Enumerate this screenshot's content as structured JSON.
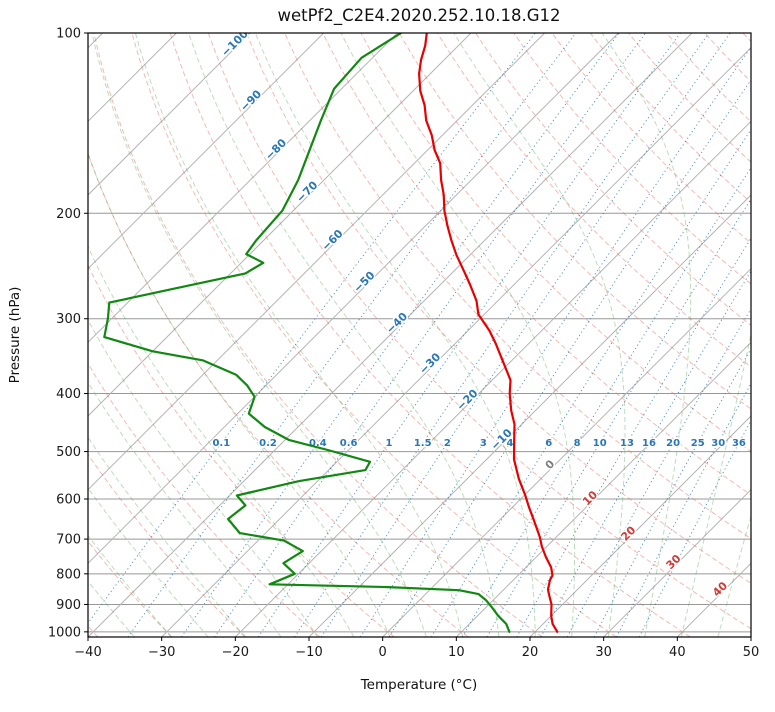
{
  "chart_data": {
    "type": "line",
    "subtype": "skewt-log-p",
    "title": "wetPf2_C2E4.2020.252.10.18.G12",
    "xlabel": "Temperature (°C)",
    "ylabel": "Pressure (hPa)",
    "x_range": [
      -40,
      50
    ],
    "p_top": 100,
    "p_bottom": 1020,
    "grid": true,
    "x_ticks": [
      {
        "v": -40,
        "label": "−40"
      },
      {
        "v": -30,
        "label": "−30"
      },
      {
        "v": -20,
        "label": "−20"
      },
      {
        "v": -10,
        "label": "−10"
      },
      {
        "v": 0,
        "label": "0"
      },
      {
        "v": 10,
        "label": "10"
      },
      {
        "v": 20,
        "label": "20"
      },
      {
        "v": 30,
        "label": "30"
      },
      {
        "v": 40,
        "label": "40"
      },
      {
        "v": 50,
        "label": "50"
      }
    ],
    "y_ticks": [
      {
        "v": 100,
        "label": "100"
      },
      {
        "v": 200,
        "label": "200"
      },
      {
        "v": 300,
        "label": "300"
      },
      {
        "v": 400,
        "label": "400"
      },
      {
        "v": 500,
        "label": "500"
      },
      {
        "v": 600,
        "label": "600"
      },
      {
        "v": 700,
        "label": "700"
      },
      {
        "v": 800,
        "label": "800"
      },
      {
        "v": 900,
        "label": "900"
      },
      {
        "v": 1000,
        "label": "1000"
      }
    ],
    "pressure_gridlines": [
      100,
      200,
      300,
      400,
      500,
      600,
      700,
      800,
      900,
      1000
    ],
    "isotherm_lines": {
      "start": -130,
      "end": 50,
      "step": 10
    },
    "dry_adiabats": {
      "start": -40,
      "end": 200,
      "step": 10
    },
    "moist_adiabats": {
      "start": -35,
      "end": 45,
      "step": 5
    },
    "mixing_ratios": [
      0.1,
      0.2,
      0.4,
      0.6,
      1,
      1.5,
      2,
      3,
      4,
      6,
      8,
      10,
      13,
      16,
      20,
      25,
      30,
      36
    ],
    "mixing_ratio_labels": [
      "0.1",
      "0.2",
      "0.4",
      "0.6",
      "1",
      "1.5",
      "2",
      "3",
      "4",
      "6",
      "8",
      "10",
      "13",
      "16",
      "20",
      "25",
      "30",
      "36"
    ],
    "mixing_label_pressure": 484,
    "isotherm_labels": [
      {
        "t": -100,
        "p": 105,
        "label": "−100"
      },
      {
        "t": -90,
        "p": 131,
        "label": "−90"
      },
      {
        "t": -80,
        "p": 158,
        "label": "−80"
      },
      {
        "t": -70,
        "p": 186,
        "label": "−70"
      },
      {
        "t": -60,
        "p": 224,
        "label": "−60"
      },
      {
        "t": -50,
        "p": 263,
        "label": "−50"
      },
      {
        "t": -40,
        "p": 308,
        "label": "−40"
      },
      {
        "t": -30,
        "p": 360,
        "label": "−30"
      },
      {
        "t": -20,
        "p": 414,
        "label": "−20"
      },
      {
        "t": -10,
        "p": 482,
        "label": "−10"
      },
      {
        "t": 0,
        "p": 531,
        "label": "0"
      },
      {
        "t": 10,
        "p": 604,
        "label": "10"
      },
      {
        "t": 20,
        "p": 692,
        "label": "20"
      },
      {
        "t": 30,
        "p": 772,
        "label": "30"
      },
      {
        "t": 40,
        "p": 857,
        "label": "40"
      }
    ],
    "series": [
      {
        "name": "temperature",
        "color": "#e60000",
        "points": [
          [
            1000,
            23.0
          ],
          [
            970,
            21.3
          ],
          [
            940,
            20.0
          ],
          [
            900,
            18.5
          ],
          [
            870,
            17.0
          ],
          [
            850,
            16.0
          ],
          [
            820,
            15.0
          ],
          [
            805,
            14.7
          ],
          [
            780,
            13.4
          ],
          [
            750,
            11.3
          ],
          [
            720,
            9.3
          ],
          [
            695,
            7.8
          ],
          [
            650,
            4.6
          ],
          [
            620,
            2.3
          ],
          [
            590,
            0.0
          ],
          [
            555,
            -3.0
          ],
          [
            515,
            -6.3
          ],
          [
            478,
            -8.9
          ],
          [
            450,
            -11.0
          ],
          [
            427,
            -13.3
          ],
          [
            400,
            -15.8
          ],
          [
            380,
            -17.5
          ],
          [
            352,
            -21.3
          ],
          [
            330,
            -24.5
          ],
          [
            314,
            -27.1
          ],
          [
            295,
            -30.8
          ],
          [
            280,
            -32.9
          ],
          [
            263,
            -36.0
          ],
          [
            249,
            -38.8
          ],
          [
            235,
            -41.8
          ],
          [
            222,
            -44.5
          ],
          [
            210,
            -47.0
          ],
          [
            198,
            -49.5
          ],
          [
            186,
            -51.8
          ],
          [
            176,
            -54.1
          ],
          [
            165,
            -56.5
          ],
          [
            157,
            -59.0
          ],
          [
            148,
            -61.5
          ],
          [
            140,
            -64.2
          ],
          [
            132,
            -66.5
          ],
          [
            125,
            -69.0
          ],
          [
            117,
            -71.5
          ],
          [
            111,
            -73.1
          ],
          [
            105,
            -74.5
          ],
          [
            100,
            -76.0
          ]
        ]
      },
      {
        "name": "dewpoint",
        "color": "#118811",
        "points": [
          [
            1000,
            16.5
          ],
          [
            970,
            15.0
          ],
          [
            940,
            12.8
          ],
          [
            910,
            10.8
          ],
          [
            885,
            9.0
          ],
          [
            865,
            7.2
          ],
          [
            852,
            4.0
          ],
          [
            842,
            -6.0
          ],
          [
            833,
            -22.5
          ],
          [
            800,
            -20.5
          ],
          [
            768,
            -23.5
          ],
          [
            733,
            -22.5
          ],
          [
            704,
            -26.5
          ],
          [
            684,
            -33.5
          ],
          [
            648,
            -37.0
          ],
          [
            615,
            -36.5
          ],
          [
            592,
            -39.0
          ],
          [
            560,
            -32.5
          ],
          [
            537,
            -25.0
          ],
          [
            520,
            -25.5
          ],
          [
            498,
            -32.5
          ],
          [
            478,
            -39.5
          ],
          [
            455,
            -44.5
          ],
          [
            432,
            -48.5
          ],
          [
            405,
            -50.0
          ],
          [
            388,
            -52.5
          ],
          [
            372,
            -55.5
          ],
          [
            352,
            -62.0
          ],
          [
            340,
            -70.0
          ],
          [
            322,
            -78.5
          ],
          [
            300,
            -80.5
          ],
          [
            282,
            -82.5
          ],
          [
            267,
            -75.5
          ],
          [
            252,
            -68.0
          ],
          [
            242,
            -67.0
          ],
          [
            234,
            -70.5
          ],
          [
            222,
            -71.0
          ],
          [
            198,
            -71.5
          ],
          [
            176,
            -73.5
          ],
          [
            157,
            -76.0
          ],
          [
            140,
            -78.5
          ],
          [
            124,
            -81.0
          ],
          [
            110,
            -81.5
          ],
          [
            100,
            -79.5
          ]
        ]
      }
    ],
    "style": {
      "text": "#1a1a1a",
      "axis": "#000000",
      "frame": "#000000",
      "pressure_line": "#989898",
      "isotherm_line": "#b4b4b4",
      "dry_adiabat": "rgba(226,105,86,0.45)",
      "moist_adiabat": "rgba(62,158,62,0.35)",
      "mixing_line": "rgba(38,118,180,0.75)",
      "label_negative": "#2b76b6",
      "label_zero": "#808080",
      "label_positive": "#cf3b34",
      "mixing_label": "#2b76b6",
      "background": "#ffffff"
    }
  }
}
